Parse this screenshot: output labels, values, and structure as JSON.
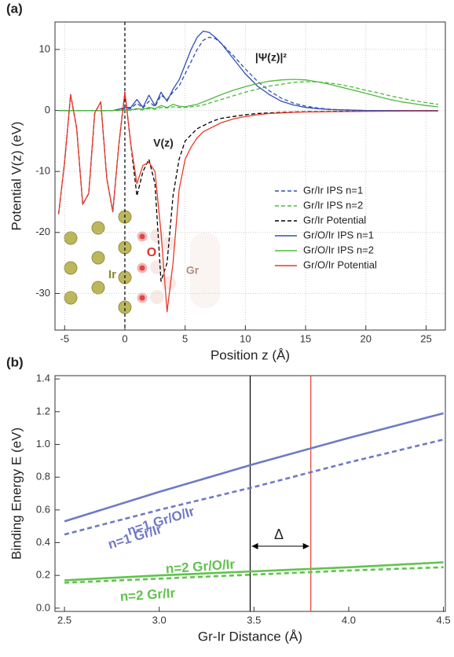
{
  "chart_data": [
    {
      "type": "line",
      "panel_label": "(a)",
      "xlabel": "Position z (Å)",
      "ylabel": "Potential V(z) (eV)",
      "xlim": [
        -5.8,
        26.6
      ],
      "ylim": [
        -36,
        14.5
      ],
      "xticks": [
        -5,
        0,
        5,
        10,
        15,
        20,
        25
      ],
      "yticks": [
        -30,
        -20,
        -10,
        0,
        10
      ],
      "grid": true,
      "legend": "lower right",
      "vlines": [
        {
          "value": 0,
          "color": "#000000"
        }
      ],
      "annotations": [
        {
          "text": "|Ψ(z)|²"
        },
        {
          "text": "V(z)"
        },
        {
          "text": "Ir"
        },
        {
          "text": "O"
        },
        {
          "text": "Gr"
        }
      ],
      "x": [
        -5.5,
        -5,
        -4.5,
        -4,
        -3.5,
        -3,
        -2.5,
        -2,
        -1.5,
        -1,
        -0.5,
        0,
        0.5,
        1,
        1.5,
        2,
        2.5,
        3,
        3.5,
        4,
        4.5,
        5,
        5.5,
        6,
        6.5,
        7,
        7.5,
        8,
        9,
        10,
        11,
        12,
        13,
        14,
        15,
        16,
        17,
        18,
        19,
        20,
        21,
        22,
        23,
        24,
        25,
        26
      ],
      "series": [
        {
          "name": "Gr/Ir IPS n=1",
          "color": "#2f4fb5",
          "style": "dashed",
          "values": [
            0,
            0,
            0,
            0,
            0,
            0,
            0,
            0,
            0,
            0,
            0.1,
            0.3,
            0.3,
            1.2,
            0.4,
            1.5,
            0.6,
            2.5,
            1.8,
            3,
            4,
            6,
            8,
            10,
            11.5,
            12,
            11.8,
            11,
            9,
            6.8,
            4.8,
            3.2,
            2,
            1.2,
            0.7,
            0.4,
            0.2,
            0.1,
            0.05,
            0,
            0,
            0,
            0,
            0,
            0,
            0
          ]
        },
        {
          "name": "Gr/Ir IPS n=2",
          "color": "#4cba3c",
          "style": "dashed",
          "values": [
            0,
            0,
            0,
            0,
            0,
            0,
            0,
            0,
            0,
            0,
            0,
            0.05,
            0.05,
            0.2,
            0.1,
            0.3,
            0.2,
            0.5,
            0.4,
            0.6,
            0.5,
            0.5,
            0.6,
            0.7,
            0.9,
            1.2,
            1.5,
            1.8,
            2.4,
            3,
            3.5,
            4,
            4.3,
            4.6,
            4.7,
            4.7,
            4.5,
            4.2,
            3.8,
            3.3,
            2.9,
            2.4,
            2,
            1.6,
            1.3,
            1.0
          ]
        },
        {
          "name": "Gr/Ir Potential",
          "color": "#000000",
          "style": "dashed",
          "values": [
            -17,
            -8.4,
            2.6,
            -2.9,
            -15.4,
            -13.6,
            -0.4,
            1.4,
            -11.2,
            -16.6,
            -5.6,
            3,
            -5.6,
            -14,
            -10,
            -8,
            -12,
            -28,
            -25,
            -14,
            -8,
            -5,
            -4,
            -3,
            -2.5,
            -2,
            -1.6,
            -1.3,
            -1,
            -0.7,
            -0.5,
            -0.4,
            -0.3,
            -0.25,
            -0.2,
            -0.18,
            -0.16,
            -0.14,
            -0.13,
            -0.12,
            -0.11,
            -0.1,
            -0.1,
            -0.09,
            -0.09,
            -0.08
          ]
        },
        {
          "name": "Gr/O/Ir IPS n=1",
          "color": "#2f4fb5",
          "style": "solid",
          "values": [
            0,
            0,
            0,
            0,
            0,
            0,
            0,
            0,
            0,
            0,
            0.2,
            0.5,
            0.5,
            1.8,
            0.5,
            2.5,
            0.8,
            3,
            1.5,
            3.5,
            5,
            7.5,
            10,
            12,
            13,
            12.8,
            12,
            11,
            8.5,
            6,
            4,
            2.6,
            1.5,
            0.9,
            0.5,
            0.3,
            0.15,
            0.1,
            0.05,
            0,
            0,
            0,
            0,
            0,
            0,
            0
          ]
        },
        {
          "name": "Gr/O/Ir IPS n=2",
          "color": "#4cba3c",
          "style": "solid",
          "values": [
            0,
            0,
            0,
            0,
            0,
            0,
            0,
            0,
            0,
            0,
            0,
            0.1,
            0.1,
            0.3,
            0.2,
            0.5,
            0.3,
            0.8,
            0.5,
            1,
            0.7,
            0.6,
            0.8,
            1,
            1.4,
            1.8,
            2.2,
            2.6,
            3.3,
            3.9,
            4.4,
            4.8,
            5,
            5.1,
            5,
            4.7,
            4.3,
            3.8,
            3.3,
            2.8,
            2.3,
            1.8,
            1.4,
            1.1,
            0.8,
            0.6
          ]
        },
        {
          "name": "Gr/O/Ir Potential",
          "color": "#e8392a",
          "style": "solid",
          "values": [
            -17,
            -8.4,
            2.6,
            -2.9,
            -15.4,
            -13.6,
            -0.4,
            1.4,
            -11.2,
            -16.6,
            -5.6,
            3,
            -5.6,
            -12,
            -9,
            -8.5,
            -10,
            -20,
            -33,
            -25,
            -13,
            -8,
            -6,
            -4.5,
            -3.5,
            -3,
            -2.5,
            -2,
            -1.4,
            -1,
            -0.7,
            -0.5,
            -0.4,
            -0.3,
            -0.25,
            -0.22,
            -0.2,
            -0.18,
            -0.16,
            -0.14,
            -0.13,
            -0.12,
            -0.11,
            -0.1,
            -0.1,
            -0.09
          ]
        }
      ]
    },
    {
      "type": "line",
      "panel_label": "(b)",
      "xlabel": "Gr-Ir Distance (Å)",
      "ylabel": "Binding Energy E (eV)",
      "xlim": [
        2.45,
        4.51
      ],
      "ylim": [
        -0.02,
        1.42
      ],
      "xticks": [
        2.5,
        {
          "value": 3,
          "label": "3.0"
        },
        3.5,
        {
          "value": 4,
          "label": "4.0"
        },
        4.5
      ],
      "yticks": [
        {
          "value": 0,
          "label": "0.0"
        },
        0.2,
        0.4,
        0.6,
        0.8,
        {
          "value": 1,
          "label": "1.0"
        },
        1.2,
        1.4
      ],
      "grid": false,
      "vlines": [
        {
          "value": 3.48,
          "color": "#000000"
        },
        {
          "value": 3.8,
          "color": "#e8392a"
        }
      ],
      "annotations": [
        {
          "text": "Δ"
        }
      ],
      "x": [
        2.5,
        3,
        3.5,
        4,
        4.5
      ],
      "series": [
        {
          "name": "n=1 Gr/O/Ir",
          "color": "#7079c4",
          "style": "solid",
          "values": [
            0.53,
            0.71,
            0.88,
            1.04,
            1.19
          ]
        },
        {
          "name": "n=1 Gr/Ir",
          "color": "#7079c4",
          "style": "dashed",
          "values": [
            0.45,
            0.6,
            0.74,
            0.89,
            1.03
          ]
        },
        {
          "name": "n=2 Gr/O/Ir",
          "color": "#62c24e",
          "style": "solid",
          "values": [
            0.17,
            0.2,
            0.225,
            0.25,
            0.28
          ]
        },
        {
          "name": "n=2 Gr/Ir",
          "color": "#62c24e",
          "style": "dashed",
          "values": [
            0.155,
            0.18,
            0.205,
            0.23,
            0.25
          ]
        }
      ]
    }
  ]
}
